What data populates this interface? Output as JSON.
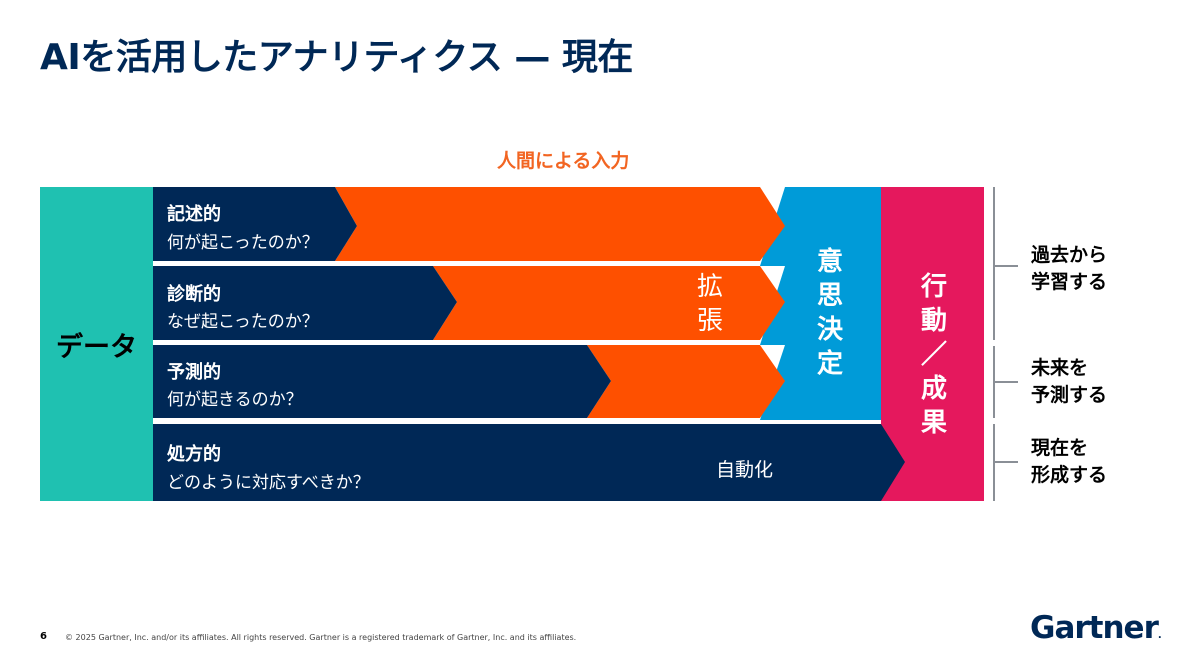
{
  "title": "AIを活用したアナリティクス — 現在",
  "human_input_label": "人間による入力",
  "data_label": "データ",
  "rows": [
    {
      "title": "記述的",
      "question": "何が起こったのか？"
    },
    {
      "title": "診断的",
      "question": "なぜ起こったのか？"
    },
    {
      "title": "予測的",
      "question": "何が起きるのか？"
    },
    {
      "title": "処方的",
      "question": "どのように対応すべきか？"
    }
  ],
  "augmentation_chars": [
    "拡",
    "張"
  ],
  "decision_chars": [
    "意",
    "思",
    "決",
    "定"
  ],
  "action_chars": [
    "行",
    "動",
    "／",
    "成",
    "果"
  ],
  "automation_label": "自動化",
  "outcomes": [
    {
      "line1": "過去から",
      "line2": "学習する"
    },
    {
      "line1": "未来を",
      "line2": "予測する"
    },
    {
      "line1": "現在を",
      "line2": "形成する"
    }
  ],
  "footer": {
    "page_number": "6",
    "copyright": "© 2025 Gartner, Inc. and/or its affiliates. All rights reserved. Gartner is a registered trademark of Gartner, Inc. and its affiliates."
  },
  "logo": {
    "text": "Gartner",
    "mark": "."
  },
  "colors": {
    "navy": "#002856",
    "orange": "#fe5000",
    "teal": "#1fc1b1",
    "blue": "#009bd8",
    "magenta": "#e5185d",
    "title_orange": "#f26522"
  }
}
